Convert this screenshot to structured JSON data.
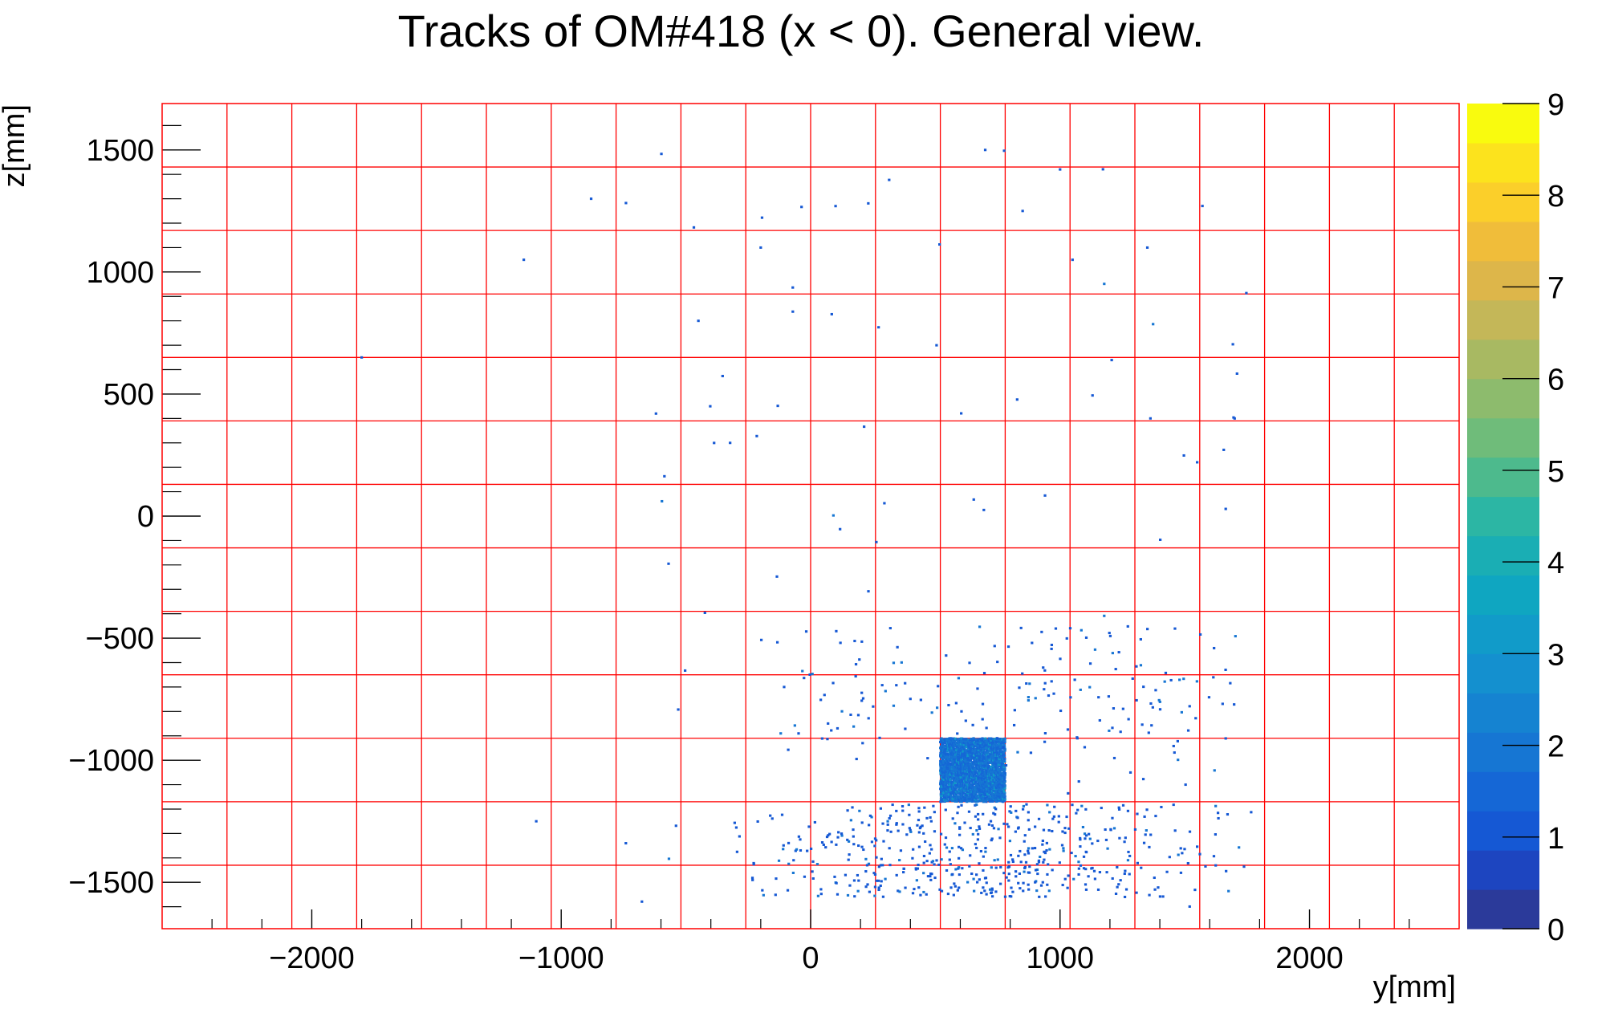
{
  "chart_data": {
    "type": "heatmap",
    "title": "Tracks of OM#418 (x < 0). General view.",
    "xlabel": "y[mm]",
    "ylabel": "z[mm]",
    "xlim": [
      -2600,
      2600
    ],
    "ylim": [
      -1690,
      1690
    ],
    "x_ticks": [
      -2000,
      -1000,
      0,
      1000,
      2000
    ],
    "x_tick_labels": [
      "−2000",
      "−1000",
      "0",
      "1000",
      "2000"
    ],
    "y_ticks": [
      -1500,
      -1000,
      -500,
      0,
      500,
      1000,
      1500
    ],
    "y_tick_labels": [
      "−1500",
      "−1000",
      "−500",
      "0",
      "500",
      "1000",
      "1500"
    ],
    "grid": true,
    "grid_color": "#ff0000",
    "grid_x": [
      -2340,
      -2080,
      -1820,
      -1560,
      -1300,
      -1040,
      -780,
      -520,
      -260,
      0,
      260,
      520,
      780,
      1040,
      1300,
      1560,
      1820,
      2080,
      2340
    ],
    "grid_y": [
      -1430,
      -1170,
      -910,
      -650,
      -390,
      -130,
      130,
      390,
      650,
      910,
      1170,
      1430
    ],
    "colorbar": {
      "min": 0,
      "max": 9,
      "ticks": [
        0,
        1,
        2,
        3,
        4,
        5,
        6,
        7,
        8,
        9
      ],
      "tick_labels": [
        "0",
        "1",
        "2",
        "3",
        "4",
        "5",
        "6",
        "7",
        "8",
        "9"
      ],
      "colors": [
        "#2b3a9a",
        "#1d45c0",
        "#1558d4",
        "#1567d6",
        "#1676d3",
        "#1583d1",
        "#1490cf",
        "#119bc9",
        "#0fa6c1",
        "#1aaeb4",
        "#2cb6a4",
        "#4dba8d",
        "#6fbc7a",
        "#8dbb6d",
        "#a8b962",
        "#c4b758",
        "#ddb64a",
        "#f0bd3a",
        "#fbcf2a",
        "#fce31d",
        "#f9fb0e"
      ]
    },
    "dense_region": {
      "y": [
        520,
        780
      ],
      "z": [
        -1170,
        -910
      ],
      "value": 2
    },
    "halo_regions": [
      {
        "y": [
          -300,
          1800
        ],
        "z": [
          -1560,
          -1180
        ],
        "value": 1
      },
      {
        "y": [
          -200,
          1700
        ],
        "z": [
          -1000,
          -450
        ],
        "value": 1
      },
      {
        "y": [
          -800,
          1800
        ],
        "z": [
          -1700,
          1500
        ],
        "value": 1
      }
    ],
    "sparse_points": [
      [
        -880,
        1300
      ],
      [
        700,
        1500
      ],
      [
        1000,
        1420
      ],
      [
        -200,
        1100
      ],
      [
        850,
        1250
      ],
      [
        1050,
        1050
      ],
      [
        -450,
        800
      ],
      [
        -1800,
        650
      ],
      [
        100,
        1270
      ],
      [
        -1150,
        1050
      ],
      [
        1700,
        400
      ],
      [
        -620,
        420
      ],
      [
        900,
        -1500
      ],
      [
        1350,
        1100
      ],
      [
        1260,
        -1560
      ],
      [
        -1100,
        -1250
      ]
    ]
  }
}
